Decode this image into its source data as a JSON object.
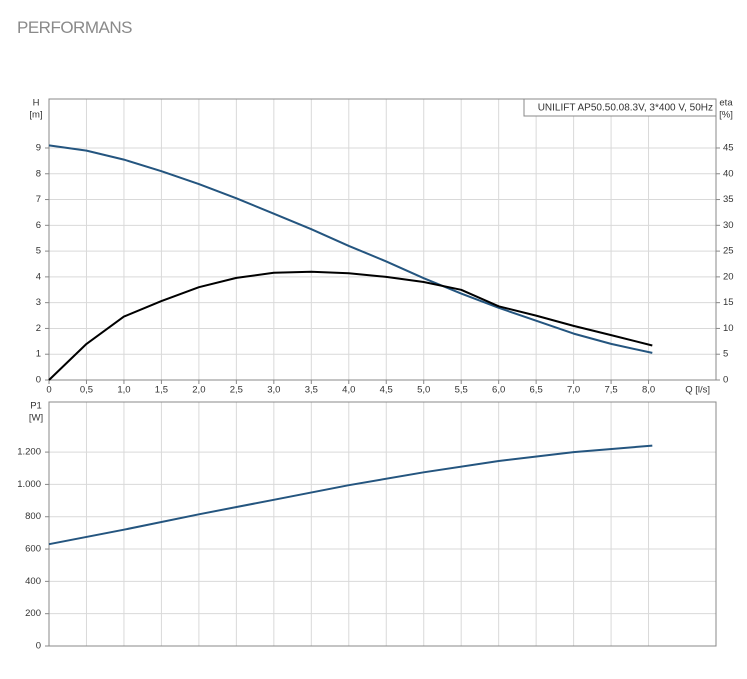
{
  "title": "PERFORMANS",
  "chart_data": [
    {
      "type": "line",
      "annotation": "UNILIFT AP50.50.08.3V, 3*400 V, 50Hz",
      "y_label": "H",
      "y_unit": "[m]",
      "y2_label": "eta",
      "y2_unit": "[%]",
      "x_label": "Q [l/s]",
      "x": [
        0,
        0.5,
        1,
        1.5,
        2,
        2.5,
        3,
        3.5,
        4,
        4.5,
        5,
        5.5,
        6,
        6.5,
        7,
        7.5,
        8.05
      ],
      "series": [
        {
          "name": "H",
          "color": "#24557f",
          "values": [
            9.1,
            8.9,
            8.55,
            8.1,
            7.6,
            7.05,
            6.45,
            5.85,
            5.2,
            4.6,
            3.95,
            3.35,
            2.8,
            2.3,
            1.8,
            1.4,
            1.05
          ]
        },
        {
          "name": "eta",
          "color": "#000000",
          "axis": "y2",
          "values": [
            0,
            7,
            12.3,
            15.3,
            18,
            19.8,
            20.8,
            21,
            20.7,
            20,
            19,
            17.5,
            14.3,
            12.5,
            10.5,
            8.7,
            6.7
          ]
        }
      ],
      "xlim": [
        0,
        8.9
      ],
      "xticks": [
        0,
        {
          "value": 0.5,
          "label": "0,5"
        },
        {
          "value": 1,
          "label": "1,0"
        },
        {
          "value": 1.5,
          "label": "1,5"
        },
        {
          "value": 2,
          "label": "2,0"
        },
        {
          "value": 2.5,
          "label": "2,5"
        },
        {
          "value": 3,
          "label": "3,0"
        },
        {
          "value": 3.5,
          "label": "3,5"
        },
        {
          "value": 4,
          "label": "4,0"
        },
        {
          "value": 4.5,
          "label": "4,5"
        },
        {
          "value": 5,
          "label": "5,0"
        },
        {
          "value": 5.5,
          "label": "5,5"
        },
        {
          "value": 6,
          "label": "6,0"
        },
        {
          "value": 6.5,
          "label": "6,5"
        },
        {
          "value": 7,
          "label": "7,0"
        },
        {
          "value": 7.5,
          "label": "7,5"
        },
        {
          "value": 8,
          "label": "8,0"
        }
      ],
      "ylim": [
        0,
        10.9
      ],
      "yticks": [
        0,
        1,
        2,
        3,
        4,
        5,
        6,
        7,
        8,
        9
      ],
      "y2lim": [
        0,
        54.5
      ],
      "y2ticks": [
        0,
        5,
        10,
        15,
        20,
        25,
        30,
        35,
        40,
        45
      ],
      "grid": true
    },
    {
      "type": "line",
      "y_label": "P1",
      "y_unit": "[W]",
      "x": [
        0,
        1,
        2,
        3,
        4,
        5,
        6,
        7,
        8.05
      ],
      "series": [
        {
          "name": "P1",
          "color": "#24557f",
          "values": [
            630,
            720,
            815,
            905,
            995,
            1075,
            1145,
            1200,
            1240
          ]
        }
      ],
      "xlim": [
        0,
        8.9
      ],
      "ylim": [
        0,
        1510
      ],
      "yticks": [
        0,
        200,
        400,
        600,
        800,
        {
          "value": 1000,
          "label": "1.000"
        },
        {
          "value": 1200,
          "label": "1.200"
        }
      ],
      "grid": true
    }
  ]
}
